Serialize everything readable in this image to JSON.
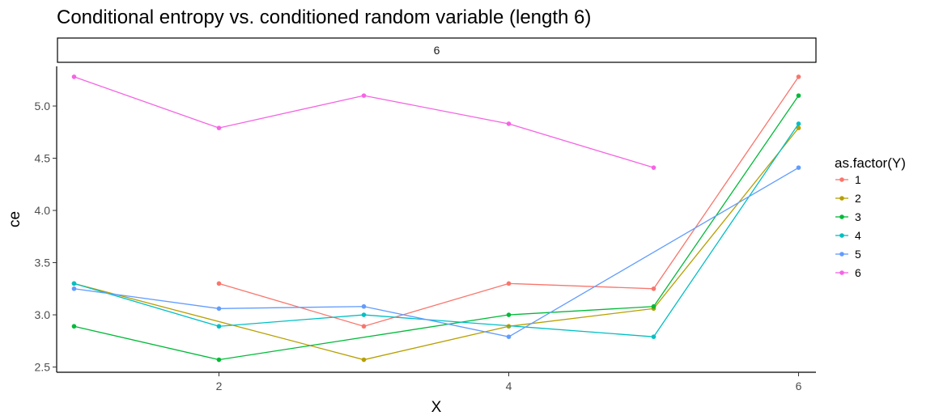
{
  "chart_data": {
    "type": "line",
    "title": "Conditional entropy vs. conditioned random variable (length 6)",
    "facet_label": "6",
    "xlabel": "X",
    "ylabel": "ce",
    "xlim": [
      0.88,
      6.12
    ],
    "ylim": [
      2.45,
      5.38
    ],
    "x_ticks": [
      2,
      4,
      6
    ],
    "x_tick_labels": [
      "2",
      "4",
      "6"
    ],
    "y_ticks": [
      2.5,
      3.0,
      3.5,
      4.0,
      4.5,
      5.0
    ],
    "y_tick_labels": [
      "2.5",
      "3.0",
      "3.5",
      "4.0",
      "4.5",
      "5.0"
    ],
    "grid": false,
    "legend": {
      "title": "as.factor(Y)",
      "position": "right"
    },
    "series": [
      {
        "name": "1",
        "color": "#F8766D",
        "points": [
          [
            2,
            3.3
          ],
          [
            3,
            2.89
          ],
          [
            4,
            3.3
          ],
          [
            5,
            3.25
          ],
          [
            6,
            5.28
          ]
        ]
      },
      {
        "name": "2",
        "color": "#B79F00",
        "points": [
          [
            1,
            3.3
          ],
          [
            3,
            2.57
          ],
          [
            4,
            2.89
          ],
          [
            5,
            3.06
          ],
          [
            6,
            4.79
          ]
        ]
      },
      {
        "name": "3",
        "color": "#00BA38",
        "points": [
          [
            1,
            2.89
          ],
          [
            2,
            2.57
          ],
          [
            4,
            3.0
          ],
          [
            5,
            3.08
          ],
          [
            6,
            5.1
          ]
        ]
      },
      {
        "name": "4",
        "color": "#00BFC4",
        "points": [
          [
            1,
            3.3
          ],
          [
            2,
            2.89
          ],
          [
            3,
            3.0
          ],
          [
            5,
            2.79
          ],
          [
            6,
            4.83
          ]
        ]
      },
      {
        "name": "5",
        "color": "#619CFF",
        "points": [
          [
            1,
            3.25
          ],
          [
            2,
            3.06
          ],
          [
            3,
            3.08
          ],
          [
            4,
            2.79
          ],
          [
            6,
            4.41
          ]
        ]
      },
      {
        "name": "6",
        "color": "#F564E3",
        "points": [
          [
            1,
            5.28
          ],
          [
            2,
            4.79
          ],
          [
            3,
            5.1
          ],
          [
            4,
            4.83
          ],
          [
            5,
            4.41
          ]
        ]
      }
    ]
  }
}
